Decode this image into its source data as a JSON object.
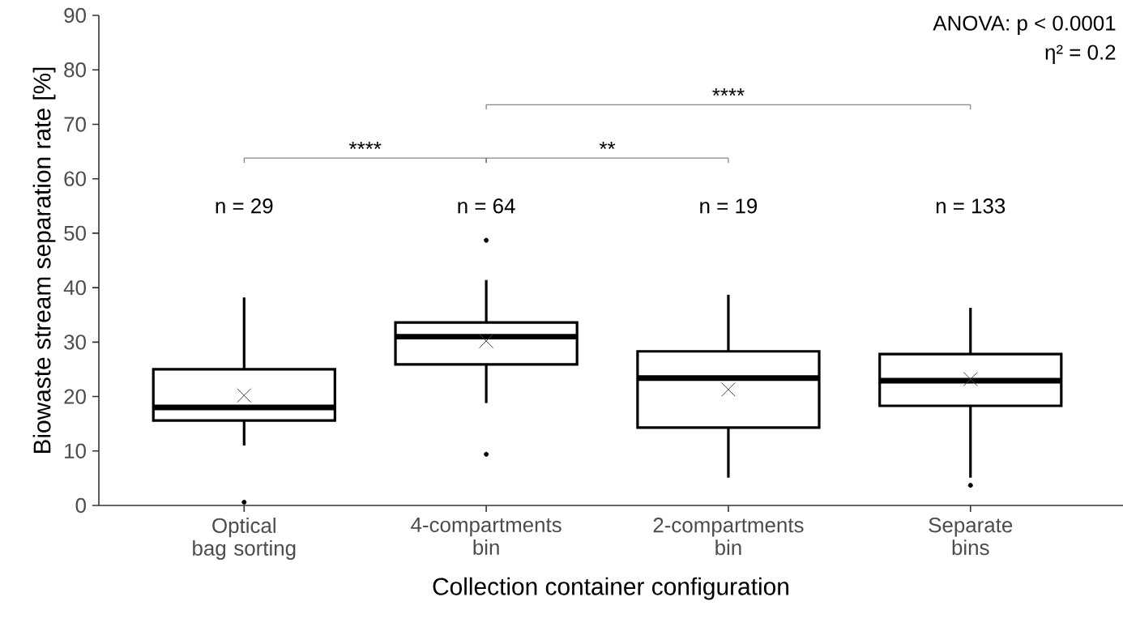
{
  "chart_data": {
    "type": "box",
    "xlabel": "Collection container configuration",
    "ylabel": "Biowaste stream separation rate [%]",
    "categories": [
      "Optical\nbag sorting",
      "4-compartments\nbin",
      "2-compartments\nbin",
      "Separate\nbins"
    ],
    "boxes": [
      {
        "low": 11.0,
        "q1": 15.6,
        "median": 18.0,
        "q3": 25.0,
        "high": 38.2,
        "mean": 20.2,
        "outliers": [
          0.6
        ]
      },
      {
        "low": 18.8,
        "q1": 25.9,
        "median": 31.0,
        "q3": 33.6,
        "high": 41.4,
        "mean": 30.2,
        "outliers": [
          9.4,
          48.7
        ]
      },
      {
        "low": 5.1,
        "q1": 14.3,
        "median": 23.4,
        "q3": 28.3,
        "high": 38.7,
        "mean": 21.3
      },
      {
        "low": 5.1,
        "q1": 18.3,
        "median": 22.9,
        "q3": 27.8,
        "high": 36.3,
        "mean": 23.2,
        "outliers": [
          3.7
        ]
      }
    ],
    "color": "#000000",
    "ylim": [
      0,
      90
    ],
    "yticks": [
      0,
      10,
      20,
      30,
      40,
      50,
      60,
      70,
      80,
      90
    ],
    "annotations": [
      "n = 29",
      "n = 64",
      "n = 19",
      "n = 133",
      "****",
      "**",
      "****",
      "ANOVA: p < 0.0001",
      "η² = 0.2"
    ]
  }
}
